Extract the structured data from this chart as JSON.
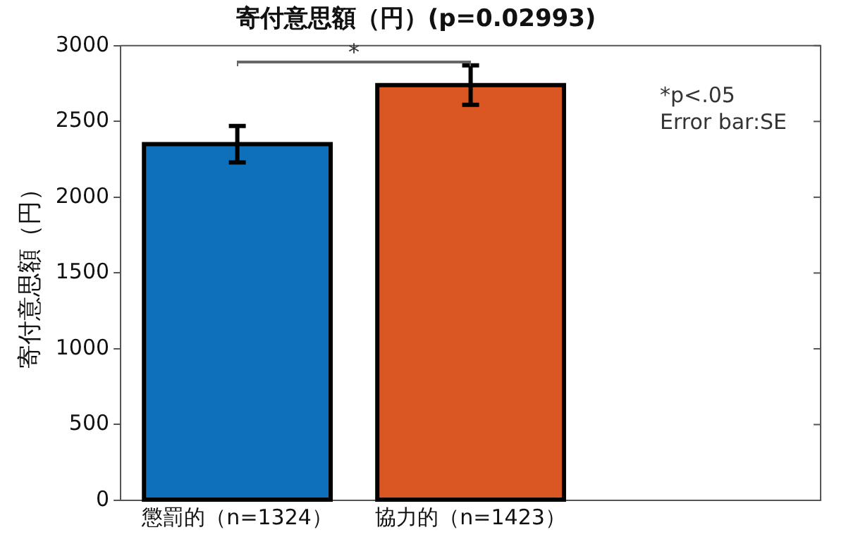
{
  "chart_data": {
    "type": "bar",
    "title": "寄付意思額（円）(p=0.02993)",
    "ylabel": "寄付意思額（円）",
    "categories": [
      "懲罰的（n=1324）",
      "協力的（n=1423）",
      null
    ],
    "values": [
      2350,
      2740,
      null
    ],
    "colors": [
      "#0e6fba",
      "#da5622",
      null
    ],
    "errors": [
      120,
      130,
      null
    ],
    "ylim": [
      0,
      3000
    ],
    "yticks": [
      0,
      500,
      1000,
      1500,
      2000,
      2500,
      3000
    ],
    "grid": false,
    "legend": false,
    "annotations": [
      "*",
      "*p<.05",
      "Error bar:SE"
    ]
  }
}
